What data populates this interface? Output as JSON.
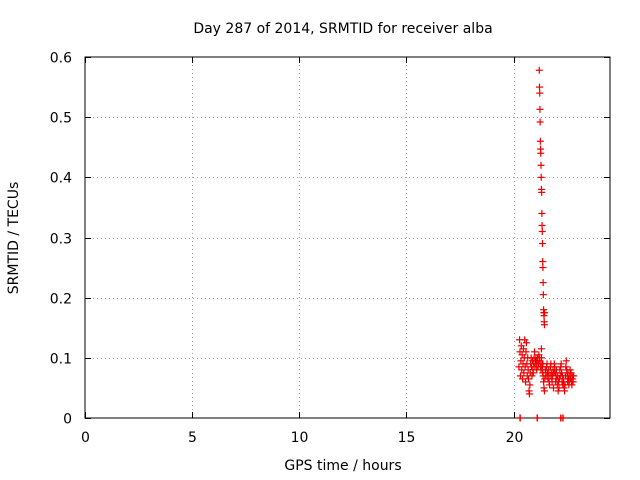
{
  "chart_data": {
    "type": "scatter",
    "title": "Day 287 of 2014, SRMTID for receiver alba",
    "xlabel": "GPS time / hours",
    "ylabel": "SRMTID / TECUs",
    "xlim": [
      0,
      24.5
    ],
    "ylim": [
      0,
      0.6
    ],
    "xticks": [
      0,
      5,
      10,
      15,
      20
    ],
    "xtick_labels": [
      "0",
      "5",
      "10",
      "15",
      "20"
    ],
    "yticks": [
      0,
      0.1,
      0.2,
      0.3,
      0.4,
      0.5,
      0.6
    ],
    "ytick_labels": [
      "0",
      "0.1",
      "0.2",
      "0.3",
      "0.4",
      "0.5",
      "0.6"
    ],
    "grid": true,
    "marker": "+",
    "colors": {
      "series": "#ee0000",
      "grid": "#a0a0a0",
      "axis": "#000000"
    },
    "series": [
      {
        "name": "SRMTID",
        "x": [
          20.25,
          20.28,
          20.3,
          20.32,
          20.34,
          20.36,
          20.38,
          20.4,
          20.42,
          20.44,
          20.46,
          20.48,
          20.5,
          20.52,
          20.54,
          20.56,
          20.58,
          20.6,
          20.62,
          20.64,
          20.66,
          20.68,
          20.7,
          20.72,
          20.74,
          20.76,
          20.78,
          20.8,
          20.82,
          20.84,
          20.86,
          20.88,
          20.9,
          20.92,
          20.94,
          20.96,
          20.98,
          21.0,
          21.02,
          21.04,
          21.06,
          21.08,
          21.1,
          21.12,
          21.14,
          21.16,
          21.18,
          21.2,
          21.22,
          21.24,
          21.26,
          21.28,
          21.3,
          21.3,
          21.32,
          21.34,
          21.35,
          21.36,
          21.37,
          21.38,
          21.4,
          21.42,
          21.44,
          21.46,
          21.48,
          21.5,
          21.52,
          21.54,
          21.56,
          21.58,
          21.6,
          21.62,
          21.64,
          21.66,
          21.68,
          21.7,
          21.72,
          21.74,
          21.76,
          21.78,
          21.8,
          21.82,
          21.84,
          21.86,
          21.88,
          21.9,
          21.92,
          21.94,
          21.96,
          21.98,
          22.0,
          22.02,
          22.04,
          22.06,
          22.08,
          22.1,
          22.12,
          22.14,
          22.16,
          22.18,
          22.2,
          22.22,
          22.24,
          22.26,
          22.28,
          22.3,
          22.32,
          22.34,
          22.36,
          22.38,
          22.4,
          22.42,
          22.44,
          22.46,
          22.48,
          22.5,
          22.52,
          22.54,
          22.56,
          22.58,
          22.6,
          22.62,
          22.64,
          22.66,
          22.68,
          22.7,
          22.72,
          22.74,
          22.76,
          22.78,
          22.8,
          21.2,
          21.21,
          21.22,
          21.23,
          21.24,
          21.25,
          21.26,
          21.27,
          21.28,
          21.29,
          21.3,
          21.31,
          21.32,
          21.33,
          21.34,
          21.35,
          21.36,
          21.37,
          21.38,
          21.39,
          21.4,
          21.41,
          21.42,
          21.43,
          21.44,
          21.45,
          20.3,
          20.31,
          21.1,
          21.11,
          22.2,
          22.21,
          22.3,
          22.31
        ],
        "y": [
          0.085,
          0.13,
          0.11,
          0.07,
          0.095,
          0.12,
          0.08,
          0.105,
          0.065,
          0.09,
          0.115,
          0.075,
          0.1,
          0.13,
          0.085,
          0.06,
          0.11,
          0.125,
          0.09,
          0.07,
          0.1,
          0.08,
          0.065,
          0.045,
          0.04,
          0.055,
          0.075,
          0.09,
          0.1,
          0.085,
          0.07,
          0.095,
          0.08,
          0.075,
          0.09,
          0.1,
          0.11,
          0.085,
          0.095,
          0.1,
          0.09,
          0.08,
          0.095,
          0.1,
          0.085,
          0.09,
          0.105,
          0.1,
          0.095,
          0.09,
          0.085,
          0.08,
          0.1,
          0.115,
          0.09,
          0.085,
          0.08,
          0.075,
          0.09,
          0.07,
          0.06,
          0.05,
          0.045,
          0.065,
          0.08,
          0.075,
          0.07,
          0.085,
          0.09,
          0.075,
          0.065,
          0.07,
          0.08,
          0.06,
          0.055,
          0.07,
          0.085,
          0.09,
          0.075,
          0.065,
          0.06,
          0.07,
          0.08,
          0.05,
          0.075,
          0.09,
          0.085,
          0.075,
          0.06,
          0.07,
          0.08,
          0.065,
          0.055,
          0.07,
          0.045,
          0.06,
          0.05,
          0.065,
          0.08,
          0.07,
          0.085,
          0.09,
          0.075,
          0.06,
          0.07,
          0.055,
          0.065,
          0.06,
          0.05,
          0.045,
          0.055,
          0.07,
          0.085,
          0.095,
          0.08,
          0.07,
          0.06,
          0.075,
          0.065,
          0.055,
          0.06,
          0.07,
          0.08,
          0.065,
          0.075,
          0.06,
          0.055,
          0.07,
          0.065,
          0.06,
          0.07,
          0.578,
          0.55,
          0.54,
          0.513,
          0.492,
          0.46,
          0.447,
          0.44,
          0.42,
          0.4,
          0.38,
          0.375,
          0.34,
          0.32,
          0.31,
          0.29,
          0.26,
          0.25,
          0.225,
          0.205,
          0.18,
          0.175,
          0.17,
          0.16,
          0.155,
          0.175,
          0,
          0,
          0,
          0,
          0,
          0,
          0,
          0
        ]
      }
    ]
  }
}
